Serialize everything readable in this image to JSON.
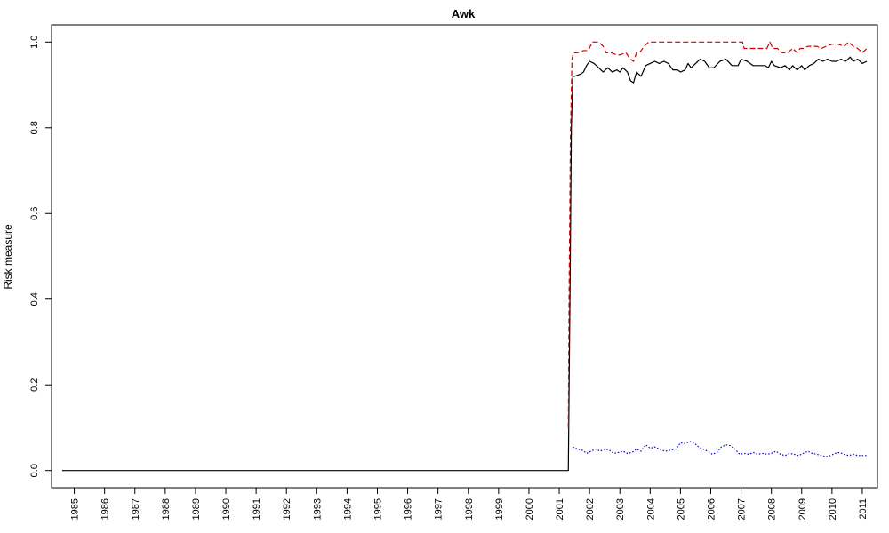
{
  "chart_data": {
    "type": "line",
    "title": "Awk",
    "xlabel": "",
    "ylabel": "Risk measure",
    "xlim": [
      1984.25,
      2011.5
    ],
    "ylim": [
      -0.04,
      1.04
    ],
    "x_ticks": [
      1985,
      1986,
      1987,
      1988,
      1989,
      1990,
      1991,
      1992,
      1993,
      1994,
      1995,
      1996,
      1997,
      1998,
      1999,
      2000,
      2001,
      2002,
      2003,
      2004,
      2005,
      2006,
      2007,
      2008,
      2009,
      2010,
      2011
    ],
    "x_tick_labels": [
      "1985",
      "1986",
      "1987",
      "1988",
      "1989",
      "1990",
      "1991",
      "1992",
      "1993",
      "1994",
      "1995",
      "1996",
      "1997",
      "1998",
      "1999",
      "2000",
      "2001",
      "2002",
      "2003",
      "2004",
      "2005",
      "2006",
      "2007",
      "2008",
      "2009",
      "2010",
      "2011"
    ],
    "y_ticks": [
      0.0,
      0.2,
      0.4,
      0.6,
      0.8,
      1.0
    ],
    "y_tick_labels": [
      "0.0",
      "0.2",
      "0.4",
      "0.6",
      "0.8",
      "1.0"
    ],
    "grid": false,
    "legend": "none",
    "series": [
      {
        "color": "#000000",
        "style": "solid",
        "x": [
          1984.6,
          2001.3,
          2001.32,
          2001.36,
          2001.4,
          2001.45,
          2001.5,
          2001.7,
          2001.8,
          2001.9,
          2002.0,
          2002.15,
          2002.3,
          2002.45,
          2002.6,
          2002.75,
          2002.9,
          2003.0,
          2003.1,
          2003.25,
          2003.35,
          2003.45,
          2003.55,
          2003.7,
          2003.85,
          2004.0,
          2004.15,
          2004.3,
          2004.45,
          2004.6,
          2004.75,
          2004.9,
          2005.0,
          2005.15,
          2005.25,
          2005.35,
          2005.5,
          2005.65,
          2005.8,
          2005.95,
          2006.1,
          2006.3,
          2006.5,
          2006.7,
          2006.9,
          2007.0,
          2007.2,
          2007.4,
          2007.6,
          2007.8,
          2007.9,
          2008.0,
          2008.1,
          2008.3,
          2008.45,
          2008.6,
          2008.7,
          2008.85,
          2009.0,
          2009.1,
          2009.25,
          2009.4,
          2009.55,
          2009.7,
          2009.85,
          2010.0,
          2010.15,
          2010.3,
          2010.45,
          2010.6,
          2010.7,
          2010.85,
          2011.0,
          2011.15
        ],
        "y": [
          0.0,
          0.0,
          0.15,
          0.45,
          0.8,
          0.92,
          0.92,
          0.925,
          0.93,
          0.945,
          0.955,
          0.95,
          0.94,
          0.93,
          0.94,
          0.93,
          0.935,
          0.93,
          0.94,
          0.93,
          0.91,
          0.905,
          0.93,
          0.92,
          0.945,
          0.95,
          0.955,
          0.95,
          0.955,
          0.95,
          0.935,
          0.935,
          0.93,
          0.935,
          0.95,
          0.94,
          0.95,
          0.96,
          0.955,
          0.94,
          0.94,
          0.955,
          0.96,
          0.945,
          0.945,
          0.96,
          0.955,
          0.945,
          0.945,
          0.945,
          0.94,
          0.955,
          0.945,
          0.94,
          0.945,
          0.935,
          0.945,
          0.935,
          0.945,
          0.935,
          0.945,
          0.95,
          0.96,
          0.955,
          0.96,
          0.955,
          0.955,
          0.96,
          0.955,
          0.965,
          0.955,
          0.96,
          0.95,
          0.955
        ]
      },
      {
        "color": "#cc0000",
        "style": "dashed",
        "x": [
          2001.3,
          2001.33,
          2001.37,
          2001.42,
          2001.47,
          2001.6,
          2001.8,
          2001.95,
          2002.1,
          2002.3,
          2002.45,
          2002.55,
          2002.7,
          2002.9,
          2003.0,
          2003.2,
          2003.35,
          2003.45,
          2003.55,
          2003.65,
          2003.8,
          2003.95,
          2004.2,
          2004.5,
          2004.8,
          2005.2,
          2005.6,
          2006.0,
          2006.4,
          2006.8,
          2007.05,
          2007.1,
          2007.4,
          2007.7,
          2007.85,
          2007.95,
          2008.05,
          2008.2,
          2008.35,
          2008.45,
          2008.55,
          2008.7,
          2008.85,
          2008.95,
          2009.05,
          2009.2,
          2009.35,
          2009.5,
          2009.65,
          2009.8,
          2010.0,
          2010.2,
          2010.4,
          2010.55,
          2010.7,
          2010.85,
          2011.0,
          2011.15
        ],
        "y": [
          0.1,
          0.46,
          0.78,
          0.96,
          0.975,
          0.975,
          0.98,
          0.98,
          1.0,
          1.0,
          0.99,
          0.975,
          0.975,
          0.97,
          0.97,
          0.975,
          0.96,
          0.955,
          0.975,
          0.975,
          0.99,
          1.0,
          1.0,
          1.0,
          1.0,
          1.0,
          1.0,
          1.0,
          1.0,
          1.0,
          1.0,
          0.985,
          0.985,
          0.985,
          0.985,
          1.0,
          0.985,
          0.985,
          0.975,
          0.975,
          0.975,
          0.985,
          0.975,
          0.985,
          0.985,
          0.99,
          0.99,
          0.99,
          0.985,
          0.99,
          0.995,
          0.995,
          0.99,
          1.0,
          0.99,
          0.985,
          0.975,
          0.985
        ]
      },
      {
        "color": "#0000cc",
        "style": "dotted",
        "x": [
          2001.45,
          2001.6,
          2001.75,
          2001.9,
          2002.05,
          2002.2,
          2002.35,
          2002.5,
          2002.65,
          2002.8,
          2002.95,
          2003.1,
          2003.25,
          2003.4,
          2003.55,
          2003.7,
          2003.85,
          2004.0,
          2004.15,
          2004.3,
          2004.5,
          2004.7,
          2004.85,
          2005.0,
          2005.15,
          2005.3,
          2005.45,
          2005.6,
          2005.75,
          2005.9,
          2006.05,
          2006.2,
          2006.35,
          2006.5,
          2006.65,
          2006.8,
          2006.95,
          2007.1,
          2007.25,
          2007.4,
          2007.55,
          2007.7,
          2007.85,
          2008.0,
          2008.15,
          2008.3,
          2008.45,
          2008.6,
          2008.75,
          2008.9,
          2009.05,
          2009.2,
          2009.35,
          2009.5,
          2009.65,
          2009.8,
          2009.95,
          2010.1,
          2010.25,
          2010.4,
          2010.55,
          2010.7,
          2010.85,
          2011.0,
          2011.15
        ],
        "y": [
          0.055,
          0.05,
          0.048,
          0.04,
          0.045,
          0.05,
          0.045,
          0.05,
          0.048,
          0.04,
          0.042,
          0.045,
          0.04,
          0.042,
          0.05,
          0.045,
          0.06,
          0.052,
          0.055,
          0.05,
          0.045,
          0.048,
          0.05,
          0.065,
          0.063,
          0.068,
          0.065,
          0.055,
          0.05,
          0.045,
          0.038,
          0.042,
          0.055,
          0.06,
          0.058,
          0.05,
          0.038,
          0.04,
          0.038,
          0.042,
          0.038,
          0.04,
          0.038,
          0.04,
          0.045,
          0.038,
          0.035,
          0.04,
          0.038,
          0.035,
          0.04,
          0.045,
          0.04,
          0.038,
          0.035,
          0.032,
          0.035,
          0.04,
          0.042,
          0.038,
          0.035,
          0.038,
          0.035,
          0.035,
          0.035
        ]
      }
    ]
  }
}
